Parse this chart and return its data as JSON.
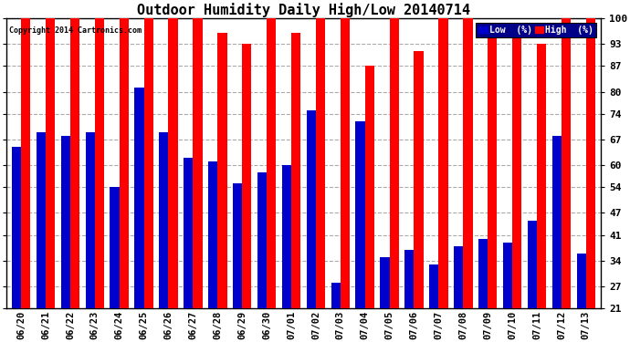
{
  "title": "Outdoor Humidity Daily High/Low 20140714",
  "copyright": "Copyright 2014 Cartronics.com",
  "dates": [
    "06/20",
    "06/21",
    "06/22",
    "06/23",
    "06/24",
    "06/25",
    "06/26",
    "06/27",
    "06/28",
    "06/29",
    "06/30",
    "07/01",
    "07/02",
    "07/03",
    "07/04",
    "07/05",
    "07/06",
    "07/07",
    "07/08",
    "07/09",
    "07/10",
    "07/11",
    "07/12",
    "07/13"
  ],
  "high": [
    100,
    100,
    100,
    100,
    100,
    100,
    100,
    100,
    96,
    93,
    100,
    96,
    100,
    100,
    87,
    100,
    91,
    100,
    100,
    96,
    97,
    93,
    100,
    100
  ],
  "low": [
    65,
    69,
    68,
    69,
    54,
    81,
    69,
    62,
    61,
    55,
    58,
    60,
    75,
    28,
    72,
    35,
    37,
    33,
    38,
    40,
    39,
    45,
    68,
    36
  ],
  "bar_width": 0.38,
  "ylim_min": 21,
  "ylim_max": 100,
  "yticks": [
    21,
    27,
    34,
    41,
    47,
    54,
    60,
    67,
    74,
    80,
    87,
    93,
    100
  ],
  "bg_color": "#ffffff",
  "plot_bg_color": "#ffffff",
  "grid_color": "#aaaaaa",
  "high_color": "#ff0000",
  "low_color": "#0000cc",
  "title_fontsize": 11,
  "legend_label_low": "Low  (%)",
  "legend_label_high": "High  (%)"
}
